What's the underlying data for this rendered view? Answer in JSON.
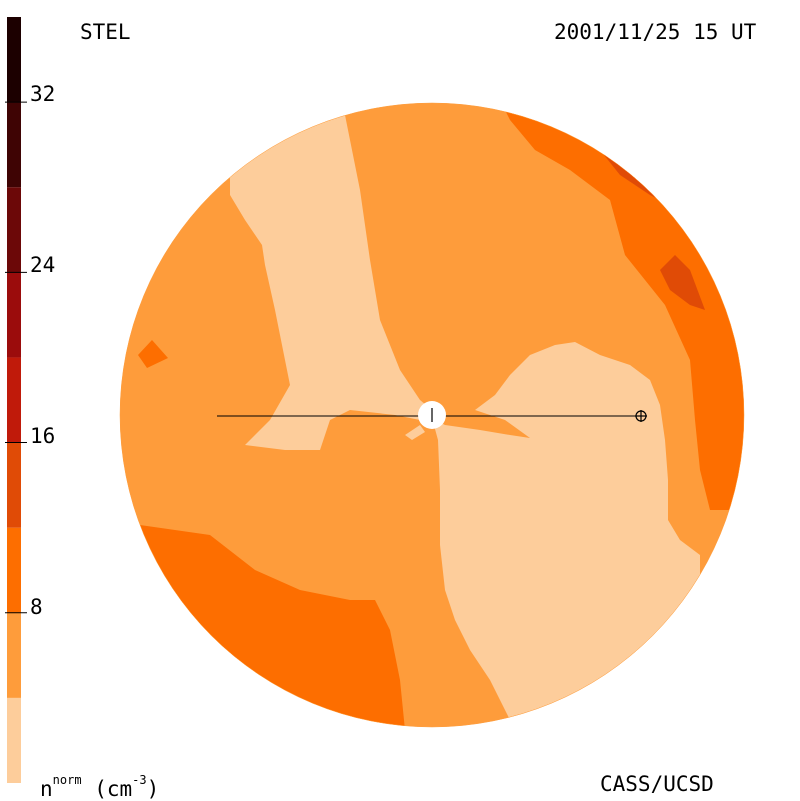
{
  "header": {
    "instrument": "STEL",
    "timestamp": "2001/11/25 15 UT"
  },
  "footer": {
    "quantity_base": "n",
    "quantity_sup": "norm",
    "quantity_unit_open": " (cm",
    "quantity_unit_exp": "-3",
    "quantity_unit_close": ")",
    "credit": "CASS/UCSD"
  },
  "colorbar": {
    "tick_labels": [
      "32",
      "24",
      "16",
      "8"
    ],
    "tick_values": [
      32,
      24,
      16,
      8
    ],
    "range": [
      0,
      36
    ],
    "bands": [
      {
        "from": 0,
        "to": 4,
        "color": "#fdcd9b"
      },
      {
        "from": 4,
        "to": 8,
        "color": "#fe9c3b"
      },
      {
        "from": 8,
        "to": 12,
        "color": "#fd6e00"
      },
      {
        "from": 12,
        "to": 16,
        "color": "#e04b06"
      },
      {
        "from": 16,
        "to": 20,
        "color": "#c01a0a"
      },
      {
        "from": 20,
        "to": 24,
        "color": "#9b0c0c"
      },
      {
        "from": 24,
        "to": 28,
        "color": "#6c0808"
      },
      {
        "from": 28,
        "to": 32,
        "color": "#3f0404"
      },
      {
        "from": 32,
        "to": 36,
        "color": "#1c0000"
      }
    ]
  },
  "colors": {
    "lightest": "#fdcd9b",
    "light": "#fe9c3b",
    "medium": "#fd6e00",
    "strong": "#e04b06",
    "background": "#ffffff"
  }
}
